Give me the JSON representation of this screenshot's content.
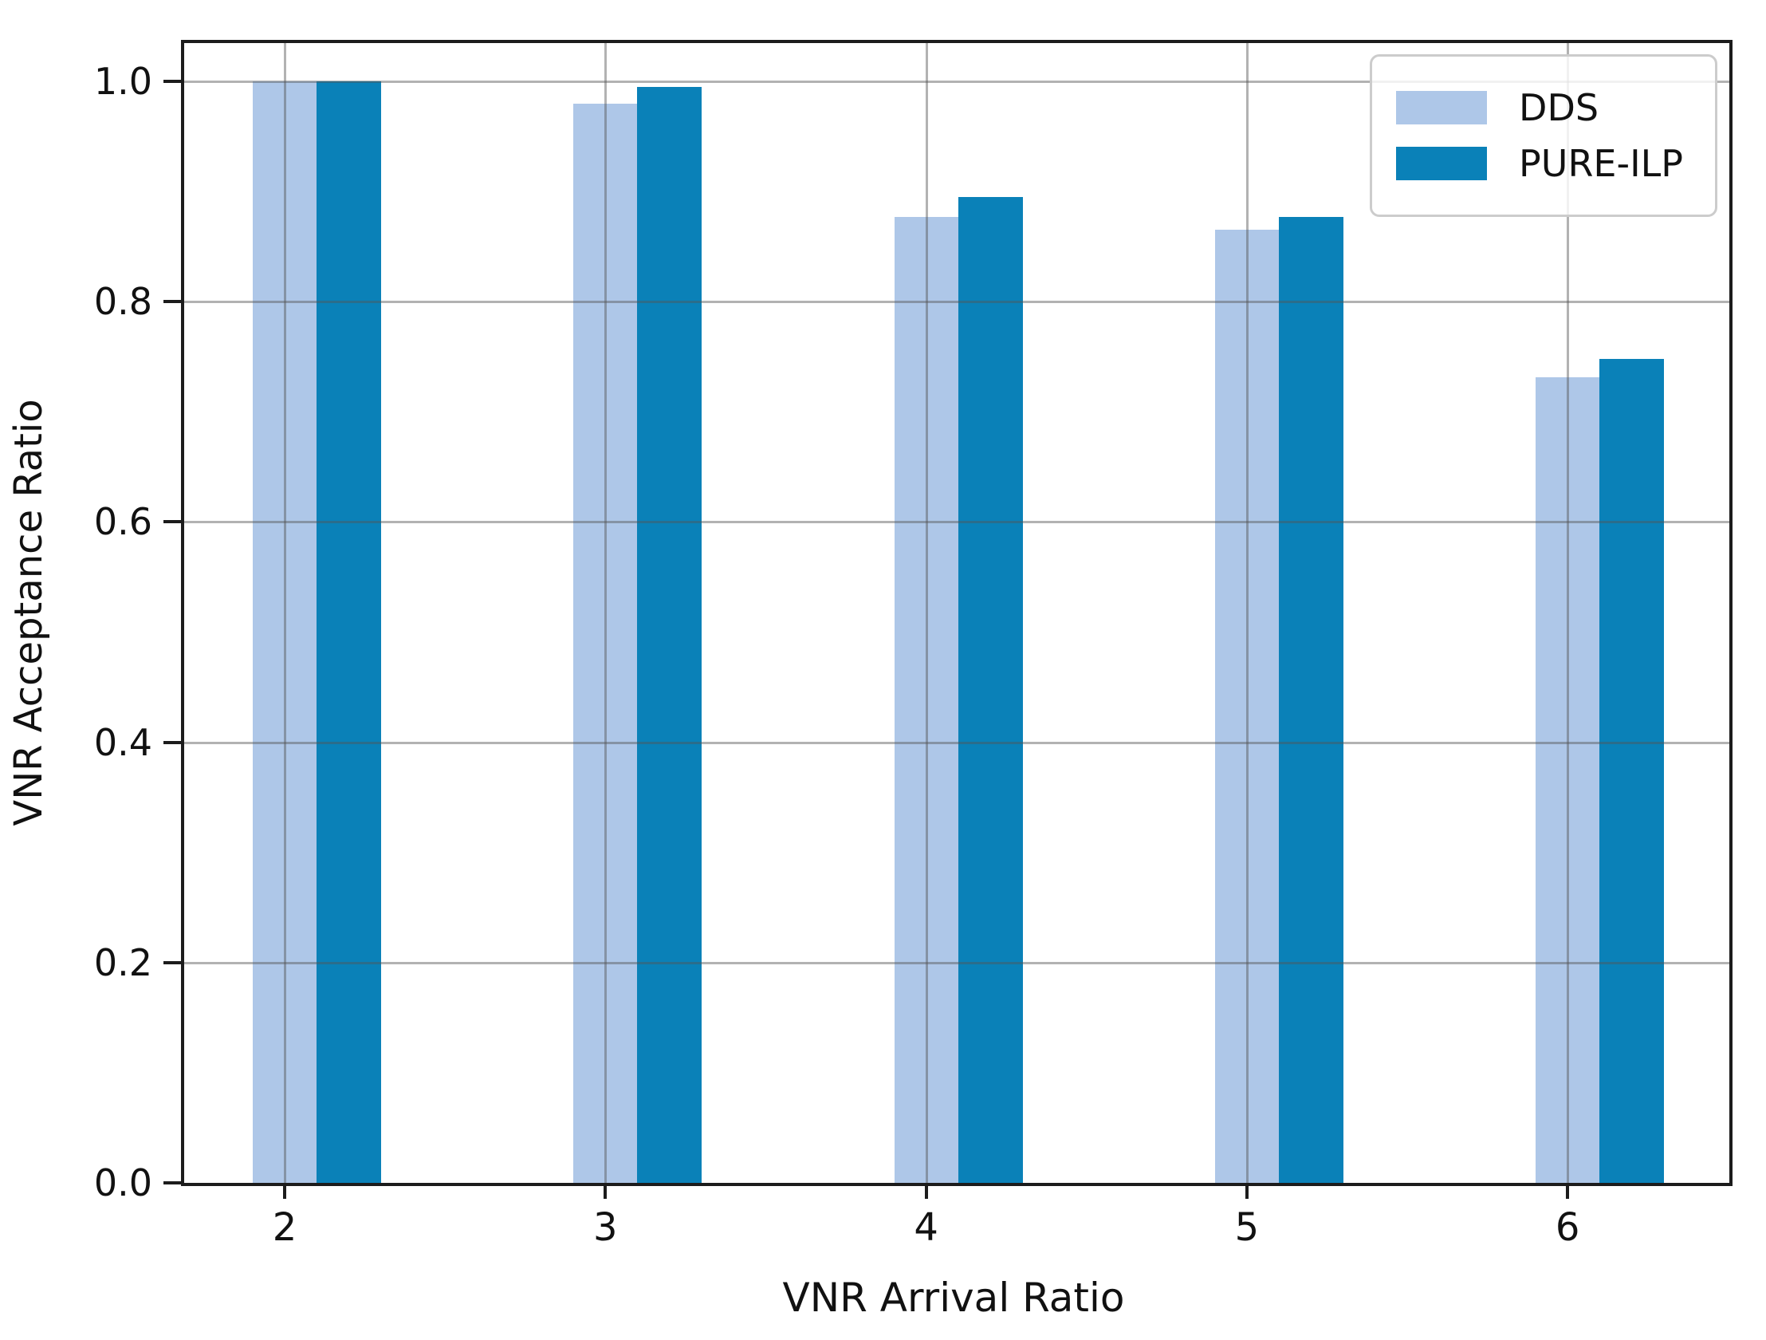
{
  "chart_data": {
    "type": "bar",
    "title": "",
    "xlabel": "VNR Arrival Ratio",
    "ylabel": "VNR Acceptance Ratio",
    "categories": [
      "2",
      "3",
      "4",
      "5",
      "6"
    ],
    "series": [
      {
        "name": "DDS",
        "color": "#aec7e8",
        "values": [
          1.0,
          0.98,
          0.877,
          0.865,
          0.731
        ]
      },
      {
        "name": "PURE-ILP",
        "color": "#0a81b8",
        "values": [
          1.0,
          0.995,
          0.895,
          0.877,
          0.748
        ]
      }
    ],
    "ylim": [
      0.0,
      1.035
    ],
    "yticks": [
      0.0,
      0.2,
      0.4,
      0.6,
      0.8,
      1.0
    ],
    "ytick_labels": [
      "0.0",
      "0.2",
      "0.4",
      "0.6",
      "0.8",
      "1.0"
    ],
    "grid": true,
    "grid_color": "#b0b0b0",
    "spine_color": "#1c1c1c",
    "background": "#ffffff",
    "legend_position": "upper right"
  }
}
